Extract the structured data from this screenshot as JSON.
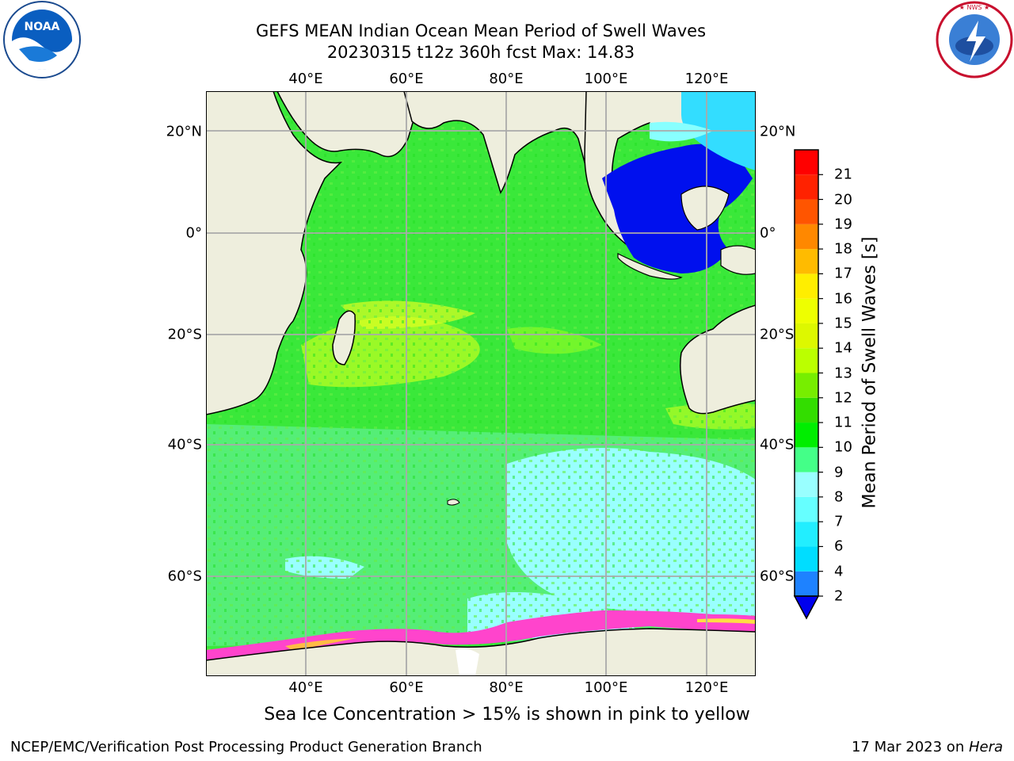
{
  "title": {
    "line1": "GEFS MEAN Indian Ocean Mean Period of Swell Waves",
    "line2": "20230315 t12z 360h fcst   Max: 14.83"
  },
  "logos": {
    "left": "noaa-logo",
    "left_text": "NOAA",
    "right": "nws-logo",
    "right_text": "NATIONAL WEATHER SERVICE"
  },
  "map": {
    "lon_ticks": [
      "40°E",
      "60°E",
      "80°E",
      "100°E",
      "120°E"
    ],
    "lat_ticks": [
      "20°N",
      "0°",
      "20°S",
      "40°S",
      "60°S"
    ],
    "grid": true,
    "land_color": "#eeeedd",
    "regions": {
      "ocean_base": "#33ee33",
      "southern_cool_patch": "#99ffff",
      "indonesian_seas": "#0000ff",
      "subtropical_warm": "#ccff22",
      "sea_ice": "#ff44cc"
    }
  },
  "colorbar": {
    "label": "Mean Period of Swell Waves [s]",
    "ticks": [
      "2",
      "4",
      "6",
      "7",
      "8",
      "9",
      "10",
      "11",
      "12",
      "13",
      "14",
      "15",
      "16",
      "17",
      "18",
      "19",
      "20",
      "21"
    ],
    "colors": [
      "#1e82ff",
      "#00ddff",
      "#22eeff",
      "#66ffff",
      "#99ffff",
      "#44ff88",
      "#00ee00",
      "#33dd00",
      "#77ee00",
      "#bbff00",
      "#ddf800",
      "#eeff00",
      "#ffee00",
      "#ffbb00",
      "#ff8800",
      "#ff5500",
      "#ff2200",
      "#ff0000"
    ],
    "extend_color": "#0000ee"
  },
  "note": "Sea Ice Concentration > 15% is shown in pink to yellow",
  "footer": {
    "left": "NCEP/EMC/Verification Post Processing Product Generation Branch",
    "right_prefix": "17 Mar 2023 on ",
    "right_machine": "Hera"
  }
}
